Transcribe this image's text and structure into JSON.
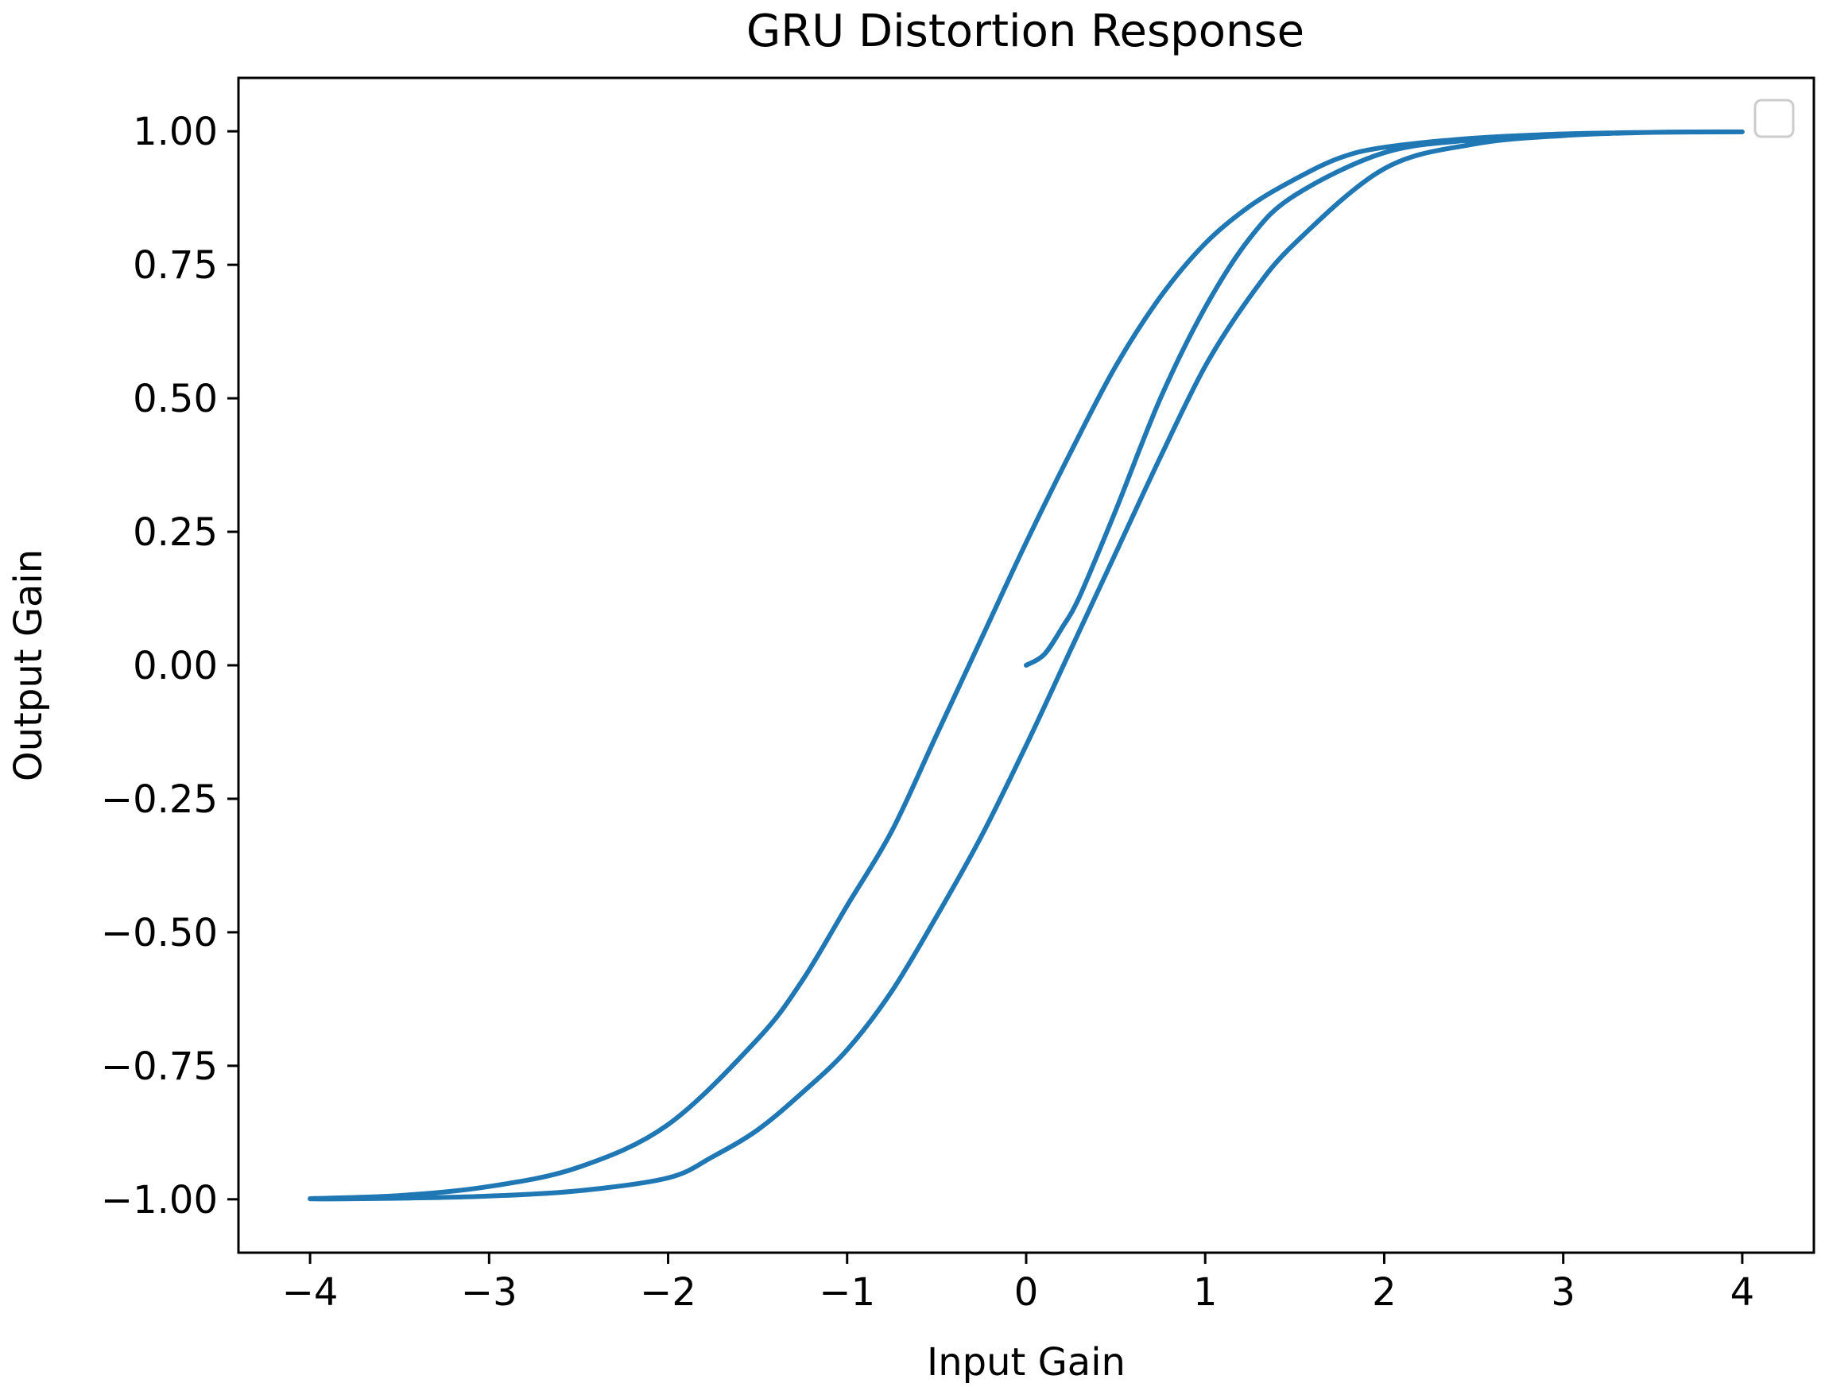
{
  "chart_data": {
    "type": "line",
    "title": "GRU Distortion Response",
    "xlabel": "Input Gain",
    "ylabel": "Output Gain",
    "xlim": [
      -4.4,
      4.4
    ],
    "ylim": [
      -1.1,
      1.1
    ],
    "xticks": [
      -4,
      -3,
      -2,
      -1,
      0,
      1,
      2,
      3,
      4
    ],
    "xtick_labels": [
      "−4",
      "−3",
      "−2",
      "−1",
      "0",
      "1",
      "2",
      "3",
      "4"
    ],
    "yticks": [
      -1.0,
      -0.75,
      -0.5,
      -0.25,
      0.0,
      0.25,
      0.5,
      0.75,
      1.0
    ],
    "ytick_labels": [
      "−1.00",
      "−0.75",
      "−0.50",
      "−0.25",
      "0.00",
      "0.25",
      "0.50",
      "0.75",
      "1.00"
    ],
    "grid": false,
    "legend": {
      "location": "top-right",
      "entries": []
    },
    "series": [
      {
        "color": "#1f77b4",
        "x": [
          0.0,
          0.1,
          0.2,
          0.3,
          0.5,
          0.75,
          1.0,
          1.25,
          1.5,
          2.0,
          2.5,
          3.0,
          3.5,
          4.0,
          3.5,
          3.0,
          2.5,
          2.0,
          1.75,
          1.5,
          1.25,
          1.0,
          0.75,
          0.5,
          0.25,
          0.0,
          -0.25,
          -0.5,
          -0.75,
          -1.0,
          -1.25,
          -1.5,
          -2.0,
          -2.5,
          -3.0,
          -3.5,
          -4.0,
          -3.5,
          -3.0,
          -2.5,
          -2.0,
          -1.75,
          -1.5,
          -1.25,
          -1.0,
          -0.75,
          -0.5,
          -0.25,
          0.0,
          0.25,
          0.5,
          0.75,
          1.0,
          1.25,
          1.5,
          2.0,
          2.5,
          3.0,
          3.5,
          4.0
        ],
        "y": [
          0.0,
          0.02,
          0.07,
          0.13,
          0.29,
          0.5,
          0.67,
          0.8,
          0.88,
          0.96,
          0.984,
          0.994,
          0.998,
          0.999,
          0.998,
          0.995,
          0.987,
          0.97,
          0.95,
          0.91,
          0.86,
          0.79,
          0.69,
          0.56,
          0.4,
          0.23,
          0.05,
          -0.13,
          -0.31,
          -0.45,
          -0.59,
          -0.7,
          -0.86,
          -0.94,
          -0.976,
          -0.993,
          -0.999,
          -0.998,
          -0.994,
          -0.984,
          -0.96,
          -0.92,
          -0.87,
          -0.8,
          -0.72,
          -0.61,
          -0.47,
          -0.32,
          -0.15,
          0.03,
          0.21,
          0.39,
          0.56,
          0.69,
          0.79,
          0.93,
          0.976,
          0.992,
          0.998,
          0.999
        ]
      }
    ]
  }
}
